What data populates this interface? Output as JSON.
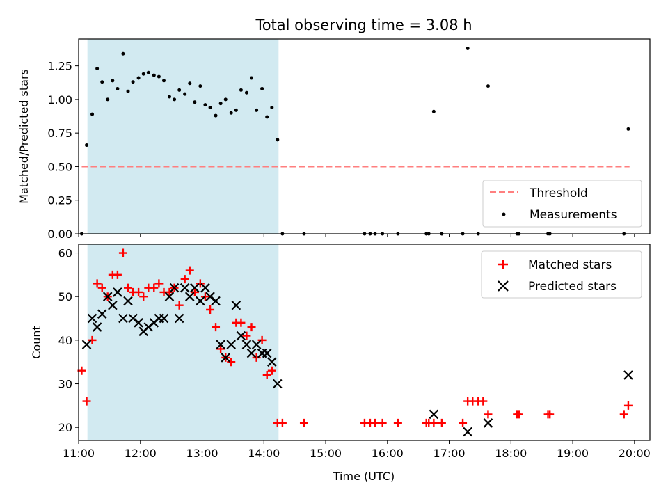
{
  "figure": {
    "title": "Total observing time = 3.08 h"
  },
  "chart_data": [
    {
      "type": "scatter",
      "panel": "top",
      "title": "Total observing time = 3.08 h",
      "ylabel": "Matched/Predicted stars",
      "xlabel": "",
      "xlim": [
        11.0,
        20.25
      ],
      "ylim": [
        0.0,
        1.45
      ],
      "yticks": [
        "0.00",
        "0.25",
        "0.50",
        "0.75",
        "1.00",
        "1.25"
      ],
      "ytick_values": [
        0,
        0.25,
        0.5,
        0.75,
        1.0,
        1.25
      ],
      "shaded_span": [
        11.15,
        14.23
      ],
      "shaded_color": "#add8e6",
      "threshold": {
        "name": "Threshold",
        "y": 0.5,
        "x_range": [
          11.05,
          19.92
        ],
        "color": "#ff7f7f"
      },
      "legend": {
        "placement": "lower right",
        "entries": [
          "Threshold",
          "Measurements"
        ]
      },
      "series": [
        {
          "name": "Measurements",
          "color": "#000000",
          "marker": "dot",
          "x": [
            11.05,
            11.13,
            11.22,
            11.3,
            11.38,
            11.47,
            11.55,
            11.63,
            11.72,
            11.8,
            11.88,
            11.97,
            12.05,
            12.13,
            12.22,
            12.3,
            12.38,
            12.47,
            12.55,
            12.63,
            12.72,
            12.8,
            12.88,
            12.97,
            13.05,
            13.13,
            13.22,
            13.3,
            13.38,
            13.47,
            13.55,
            13.63,
            13.72,
            13.8,
            13.88,
            13.97,
            14.05,
            14.13,
            14.22,
            14.3,
            14.65,
            15.63,
            15.72,
            15.8,
            15.92,
            16.17,
            16.63,
            16.67,
            16.75,
            16.88,
            17.22,
            17.3,
            17.47,
            17.63,
            18.1,
            18.13,
            18.6,
            18.63,
            19.83,
            19.9
          ],
          "y": [
            0.0,
            0.66,
            0.89,
            1.23,
            1.13,
            1.0,
            1.14,
            1.08,
            1.34,
            1.06,
            1.13,
            1.16,
            1.19,
            1.2,
            1.18,
            1.17,
            1.14,
            1.02,
            1.0,
            1.07,
            1.04,
            1.12,
            0.98,
            1.1,
            0.96,
            0.94,
            0.88,
            0.97,
            1.0,
            0.9,
            0.92,
            1.07,
            1.05,
            1.16,
            0.92,
            1.08,
            0.87,
            0.94,
            0.7,
            0.0,
            0.0,
            0.0,
            0.0,
            0.0,
            0.0,
            0.0,
            0.0,
            0.0,
            0.91,
            0.0,
            0.0,
            1.38,
            0.0,
            1.1,
            0.0,
            0.0,
            0.0,
            0.0,
            0.0,
            0.78
          ]
        }
      ]
    },
    {
      "type": "scatter",
      "panel": "bottom",
      "xlabel": "Time (UTC)",
      "ylabel": "Count",
      "xlim": [
        11.0,
        20.25
      ],
      "ylim": [
        17.0,
        62.0
      ],
      "xticks": [
        "11:00",
        "12:00",
        "13:00",
        "14:00",
        "15:00",
        "16:00",
        "17:00",
        "18:00",
        "19:00",
        "20:00"
      ],
      "xtick_values": [
        11,
        12,
        13,
        14,
        15,
        16,
        17,
        18,
        19,
        20
      ],
      "yticks": [
        "20",
        "30",
        "40",
        "50",
        "60"
      ],
      "ytick_values": [
        20,
        30,
        40,
        50,
        60
      ],
      "shaded_span": [
        11.15,
        14.23
      ],
      "shaded_color": "#add8e6",
      "legend": {
        "placement": "upper right",
        "entries": [
          "Matched stars",
          "Predicted stars"
        ]
      },
      "series": [
        {
          "name": "Matched stars",
          "color": "#ff0000",
          "marker": "plus",
          "x": [
            11.05,
            11.13,
            11.22,
            11.3,
            11.38,
            11.47,
            11.55,
            11.63,
            11.72,
            11.8,
            11.88,
            11.97,
            12.05,
            12.13,
            12.22,
            12.3,
            12.38,
            12.47,
            12.55,
            12.63,
            12.72,
            12.8,
            12.88,
            12.97,
            13.05,
            13.13,
            13.22,
            13.3,
            13.38,
            13.47,
            13.55,
            13.63,
            13.72,
            13.8,
            13.88,
            13.97,
            14.05,
            14.13,
            14.22,
            14.3,
            14.65,
            15.63,
            15.72,
            15.8,
            15.92,
            16.17,
            16.63,
            16.67,
            16.75,
            16.88,
            17.22,
            17.3,
            17.38,
            17.47,
            17.55,
            17.63,
            18.1,
            18.13,
            18.6,
            18.63,
            19.83,
            19.9
          ],
          "y": [
            33,
            26,
            40,
            53,
            52,
            50,
            55,
            55,
            60,
            52,
            51,
            51,
            50,
            52,
            52,
            53,
            51,
            51,
            52,
            48,
            54,
            56,
            51,
            53,
            50,
            47,
            43,
            38,
            36,
            35,
            44,
            44,
            41,
            43,
            36,
            40,
            32,
            33,
            21,
            21,
            21,
            21,
            21,
            21,
            21,
            21,
            21,
            21,
            21,
            21,
            21,
            26,
            26,
            26,
            26,
            23,
            23,
            23,
            23,
            23,
            23,
            25
          ]
        },
        {
          "name": "Predicted stars",
          "color": "#000000",
          "marker": "x",
          "x": [
            11.13,
            11.22,
            11.3,
            11.38,
            11.47,
            11.55,
            11.63,
            11.72,
            11.8,
            11.88,
            11.97,
            12.05,
            12.13,
            12.22,
            12.3,
            12.38,
            12.47,
            12.55,
            12.63,
            12.72,
            12.8,
            12.88,
            12.97,
            13.05,
            13.13,
            13.22,
            13.3,
            13.38,
            13.47,
            13.55,
            13.63,
            13.72,
            13.8,
            13.88,
            13.97,
            14.05,
            14.13,
            14.22,
            16.75,
            17.3,
            17.63,
            19.9
          ],
          "y": [
            39,
            45,
            43,
            46,
            50,
            48,
            51,
            45,
            49,
            45,
            44,
            42,
            43,
            44,
            45,
            45,
            50,
            52,
            45,
            52,
            50,
            52,
            49,
            52,
            50,
            49,
            39,
            36,
            39,
            48,
            41,
            39,
            37,
            39,
            37,
            37,
            35,
            30,
            23,
            19,
            21,
            32
          ]
        }
      ]
    }
  ]
}
